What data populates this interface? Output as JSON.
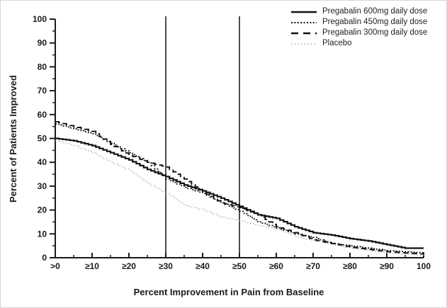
{
  "figure": {
    "background_color": "#ffffff",
    "axis_color": "#1a1a1a",
    "reference_line_color": "#4d4d4d",
    "placebo_color": "#b0b0b0",
    "drug_color": "#111111"
  },
  "chart_data": {
    "type": "line",
    "subtype": "step-responder-curves",
    "title": "",
    "xlabel": "Percent Improvement in Pain from Baseline",
    "ylabel": "Percent of Patients Improved",
    "xlim": [
      0,
      100
    ],
    "ylim": [
      0,
      100
    ],
    "grid": false,
    "legend_position": "top-right",
    "x_tick_values": [
      0,
      10,
      20,
      30,
      40,
      50,
      60,
      70,
      80,
      90,
      100
    ],
    "x_tick_labels": [
      ">0",
      "≥10",
      "≥20",
      "≥30",
      "≥40",
      "≥50",
      "≥60",
      "≥70",
      "≥80",
      "≥90",
      "100"
    ],
    "y_tick_values": [
      0,
      10,
      20,
      30,
      40,
      50,
      60,
      70,
      80,
      90,
      100
    ],
    "y_tick_labels": [
      "0",
      "10",
      "20",
      "30",
      "40",
      "50",
      "60",
      "70",
      "80",
      "90",
      "100"
    ],
    "minor_tick_step": 5,
    "reference_lines_x": [
      30,
      50
    ],
    "x_sample_points": [
      0,
      5,
      10,
      15,
      20,
      25,
      30,
      35,
      40,
      45,
      50,
      55,
      60,
      65,
      70,
      75,
      80,
      85,
      90,
      95,
      100
    ],
    "series": [
      {
        "name": "Pregabalin 600mg daily dose",
        "style": "solid",
        "color": "#111111",
        "values": [
          50,
          49,
          47,
          44,
          41,
          37,
          34,
          30.5,
          28,
          25,
          21.5,
          18,
          16.5,
          13,
          10.5,
          9.5,
          8,
          7,
          5.5,
          4,
          4
        ]
      },
      {
        "name": "Pregabalin 450mg daily dose",
        "style": "dotted",
        "color": "#111111",
        "values": [
          56,
          54,
          52,
          48,
          44,
          40,
          33,
          29.5,
          27,
          23,
          19.5,
          15,
          12.5,
          10,
          8.5,
          6,
          5,
          4,
          3,
          2.5,
          2
        ]
      },
      {
        "name": "Pregabalin 300mg daily dose",
        "style": "dashed",
        "color": "#111111",
        "values": [
          57,
          55,
          53,
          47.5,
          43,
          40,
          38,
          33,
          27.5,
          23,
          21,
          18,
          13,
          10.5,
          7.5,
          6,
          4.5,
          3.5,
          2.5,
          2,
          1.5
        ]
      },
      {
        "name": "Placebo",
        "style": "dotted-light",
        "color": "#b0b0b0",
        "values": [
          49,
          47,
          44,
          40,
          36.5,
          31,
          27,
          22,
          20,
          17,
          15.5,
          13.5,
          12,
          9,
          7,
          5.5,
          4,
          3,
          2,
          1.5,
          1
        ]
      }
    ]
  }
}
